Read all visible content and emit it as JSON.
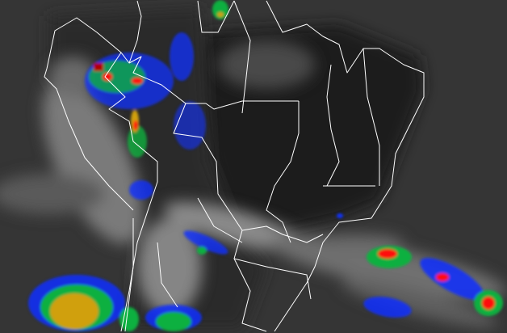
{
  "map": {
    "type": "infrared satellite image",
    "region": "South America",
    "colors": {
      "ocean_background": "#333333",
      "land_dark": "#1c1c1c",
      "cloud_gray": "#8a8a8a",
      "borders": "#ffffff",
      "cloud_top_blue": "#1030ff",
      "cloud_top_green": "#10b040",
      "cloud_top_yellow": "#d0a010",
      "cloud_top_red": "#ff1010",
      "cloud_top_darkred": "#b00000"
    }
  }
}
